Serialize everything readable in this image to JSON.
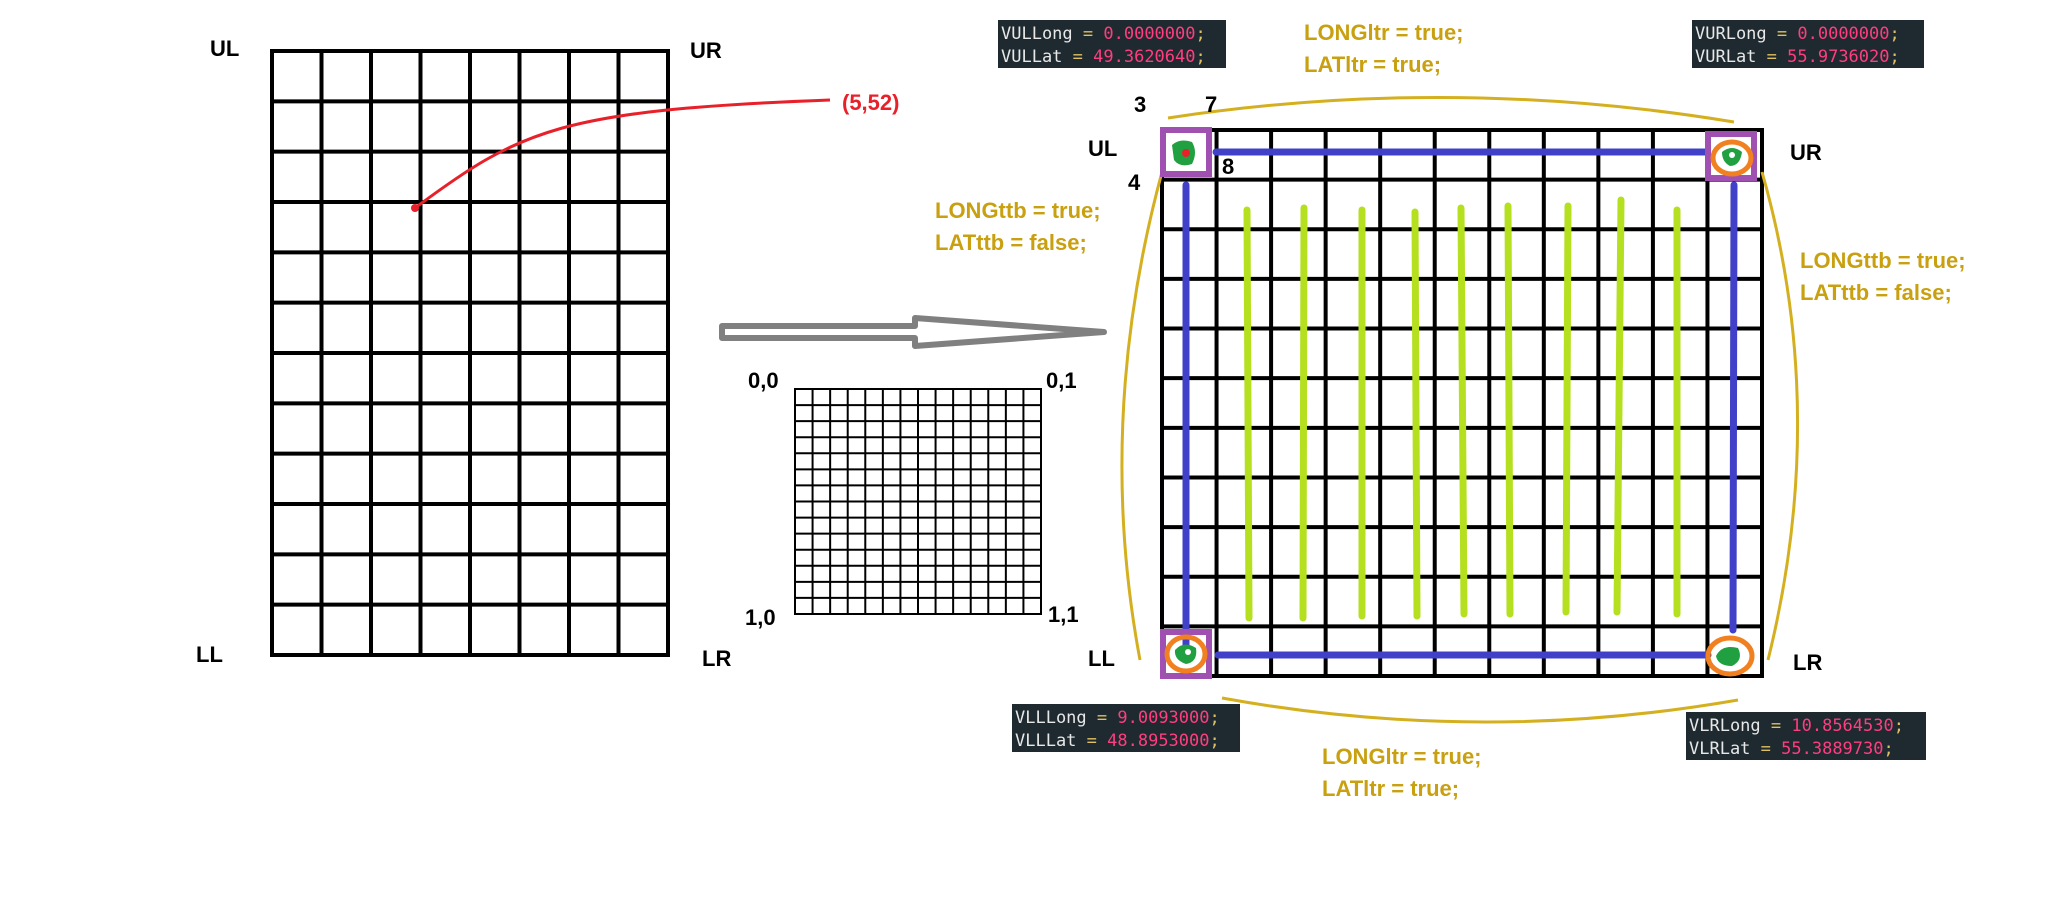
{
  "left_grid": {
    "corners": {
      "ul": "UL",
      "ur": "UR",
      "ll": "LL",
      "lr": "LR"
    },
    "point_label": "(5,52)",
    "cols": 8,
    "rows": 12
  },
  "small_grid": {
    "corners": {
      "tl": "0,0",
      "tr": "0,1",
      "bl": "1,0",
      "br": "1,1"
    },
    "cols": 14,
    "rows": 14
  },
  "right_grid": {
    "corners": {
      "ul": "UL",
      "ur": "UR",
      "ll": "LL",
      "lr": "LR"
    },
    "numbers": {
      "n3": "3",
      "n7": "7",
      "n4": "4",
      "n8": "8"
    },
    "cols": 11,
    "rows": 11
  },
  "flags": {
    "top": [
      "LONGltr = true;",
      "LATltr = true;"
    ],
    "left": [
      "LONGttb = true;",
      "LATttb = false;"
    ],
    "right": [
      "LONGttb = true;",
      "LATttb = false;"
    ],
    "bottom": [
      "LONGltr = true;",
      "LATltr = true;"
    ]
  },
  "code_boxes": {
    "ul": [
      {
        "name": "VULLong",
        "eq": " = ",
        "val": "0.0000000",
        "semi": ";"
      },
      {
        "name": "VULLat",
        "eq": " = ",
        "val": "49.3620640",
        "semi": ";"
      }
    ],
    "ur": [
      {
        "name": "VURLong",
        "eq": " = ",
        "val": "0.0000000",
        "semi": ";"
      },
      {
        "name": "VURLat",
        "eq": " = ",
        "val": "55.9736020",
        "semi": ";"
      }
    ],
    "ll": [
      {
        "name": "VLLLong",
        "eq": " = ",
        "val": "9.0093000",
        "semi": ";"
      },
      {
        "name": "VLLLat",
        "eq": " = ",
        "val": "48.8953000",
        "semi": ";"
      }
    ],
    "lr": [
      {
        "name": "VLRLong",
        "eq": " = ",
        "val": "10.8564530",
        "semi": ";"
      },
      {
        "name": "VLRLat",
        "eq": " = ",
        "val": "55.3889730",
        "semi": ";"
      }
    ]
  },
  "colors": {
    "grid": "#000000",
    "red_line": "#e8202a",
    "blue_line": "#4040c8",
    "green_line": "#b4e020",
    "yellow_text": "#c8a010",
    "purple_box": "#a050b0",
    "orange_ring": "#f08020",
    "green_blob": "#20a040",
    "arrow": "#808080",
    "code_bg": "#1e2a30"
  }
}
